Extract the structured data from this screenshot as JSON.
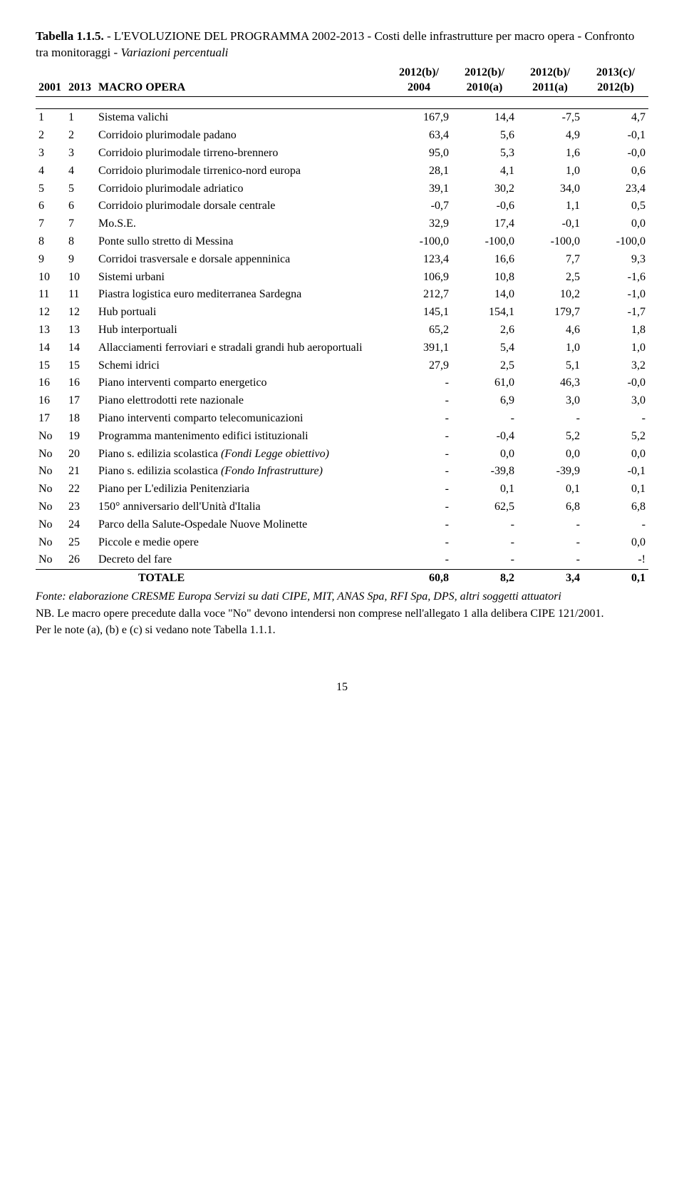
{
  "title": {
    "line1_prefix": "Tabella 1.1.5.",
    "line1_rest": " - L'EVOLUZIONE DEL PROGRAMMA 2002-2013 - Costi delle infrastrutture per macro opera - Confronto tra monitoraggi - ",
    "line1_italic": "Variazioni percentuali"
  },
  "header": {
    "c1": "2001",
    "c2": "2013",
    "c3": "MACRO OPERA",
    "c4a": "2012(b)/",
    "c4b": "2004",
    "c5a": "2012(b)/",
    "c5b": "2010(a)",
    "c6a": "2012(b)/",
    "c6b": "2011(a)",
    "c7a": "2013(c)/",
    "c7b": "2012(b)"
  },
  "rows": [
    {
      "a": "1",
      "b": "1",
      "label": "Sistema valichi",
      "v": [
        "167,9",
        "14,4",
        "-7,5",
        "4,7"
      ]
    },
    {
      "a": "2",
      "b": "2",
      "label": "Corridoio plurimodale padano",
      "v": [
        "63,4",
        "5,6",
        "4,9",
        "-0,1"
      ]
    },
    {
      "a": "3",
      "b": "3",
      "label": "Corridoio plurimodale tirreno-brennero",
      "v": [
        "95,0",
        "5,3",
        "1,6",
        "-0,0"
      ]
    },
    {
      "a": "4",
      "b": "4",
      "label": "Corridoio plurimodale tirrenico-nord europa",
      "v": [
        "28,1",
        "4,1",
        "1,0",
        "0,6"
      ]
    },
    {
      "a": "5",
      "b": "5",
      "label": "Corridoio plurimodale adriatico",
      "v": [
        "39,1",
        "30,2",
        "34,0",
        "23,4"
      ]
    },
    {
      "a": "6",
      "b": "6",
      "label": "Corridoio plurimodale dorsale centrale",
      "v": [
        "-0,7",
        "-0,6",
        "1,1",
        "0,5"
      ]
    },
    {
      "a": "7",
      "b": "7",
      "label": "Mo.S.E.",
      "v": [
        "32,9",
        "17,4",
        "-0,1",
        "0,0"
      ]
    },
    {
      "a": "8",
      "b": "8",
      "label": "Ponte sullo stretto di Messina",
      "v": [
        "-100,0",
        "-100,0",
        "-100,0",
        "-100,0"
      ]
    },
    {
      "a": "9",
      "b": "9",
      "label": "Corridoi trasversale e dorsale appenninica",
      "v": [
        "123,4",
        "16,6",
        "7,7",
        "9,3"
      ]
    },
    {
      "a": "10",
      "b": "10",
      "label": "Sistemi urbani",
      "v": [
        "106,9",
        "10,8",
        "2,5",
        "-1,6"
      ]
    },
    {
      "a": "11",
      "b": "11",
      "label": "Piastra logistica euro mediterranea Sardegna",
      "v": [
        "212,7",
        "14,0",
        "10,2",
        "-1,0"
      ]
    },
    {
      "a": "12",
      "b": "12",
      "label": "Hub portuali",
      "v": [
        "145,1",
        "154,1",
        "179,7",
        "-1,7"
      ]
    },
    {
      "a": "13",
      "b": "13",
      "label": "Hub interportuali",
      "v": [
        "65,2",
        "2,6",
        "4,6",
        "1,8"
      ]
    },
    {
      "a": "14",
      "b": "14",
      "label": "Allacciamenti ferroviari e stradali grandi hub aeroportuali",
      "v": [
        "391,1",
        "5,4",
        "1,0",
        "1,0"
      ]
    },
    {
      "a": "15",
      "b": "15",
      "label": "Schemi idrici",
      "v": [
        "27,9",
        "2,5",
        "5,1",
        "3,2"
      ]
    },
    {
      "a": "16",
      "b": "16",
      "label": "Piano interventi comparto energetico",
      "v": [
        "-",
        "61,0",
        "46,3",
        "-0,0"
      ]
    },
    {
      "a": "16",
      "b": "17",
      "label": "Piano elettrodotti rete nazionale",
      "v": [
        "-",
        "6,9",
        "3,0",
        "3,0"
      ]
    },
    {
      "a": "17",
      "b": "18",
      "label": "Piano interventi comparto telecomunicazioni",
      "v": [
        "-",
        "-",
        "-",
        "-"
      ]
    },
    {
      "a": "No",
      "b": "19",
      "label": "Programma mantenimento edifici istituzionali",
      "v": [
        "-",
        "-0,4",
        "5,2",
        "5,2"
      ]
    },
    {
      "a": "No",
      "b": "20",
      "label": "Piano s. edilizia scolastica ",
      "label_italic": "(Fondi Legge obiettivo)",
      "v": [
        "-",
        "0,0",
        "0,0",
        "0,0"
      ]
    },
    {
      "a": "No",
      "b": "21",
      "label": "Piano s. edilizia scolastica ",
      "label_italic": "(Fondo Infrastrutture)",
      "v": [
        "-",
        "-39,8",
        "-39,9",
        "-0,1"
      ]
    },
    {
      "a": "No",
      "b": "22",
      "label": "Piano per L'edilizia Penitenziaria",
      "v": [
        "-",
        "0,1",
        "0,1",
        "0,1"
      ]
    },
    {
      "a": "No",
      "b": "23",
      "label": "150° anniversario dell'Unità d'Italia",
      "v": [
        "-",
        "62,5",
        "6,8",
        "6,8"
      ]
    },
    {
      "a": "No",
      "b": "24",
      "label": "Parco della Salute-Ospedale Nuove Molinette",
      "v": [
        "-",
        "-",
        "-",
        "-"
      ]
    },
    {
      "a": "No",
      "b": "25",
      "label": "Piccole e medie opere",
      "v": [
        "-",
        "-",
        "-",
        "0,0"
      ]
    },
    {
      "a": "No",
      "b": "26",
      "label": "Decreto del fare",
      "v": [
        "-",
        "-",
        "-",
        "-!"
      ]
    }
  ],
  "total": {
    "label": "TOTALE",
    "v": [
      "60,8",
      "8,2",
      "3,4",
      "0,1"
    ]
  },
  "fonte": "Fonte: elaborazione CRESME Europa Servizi su dati CIPE, MIT, ANAS Spa, RFI Spa, DPS, altri soggetti attuatori",
  "nb": "NB. Le macro opere precedute dalla voce \"No\" devono intendersi non comprese nell'allegato 1 alla delibera CIPE 121/2001.",
  "note_ab": "Per le note (a), (b) e (c) si vedano note Tabella 1.1.1.",
  "page": "15"
}
